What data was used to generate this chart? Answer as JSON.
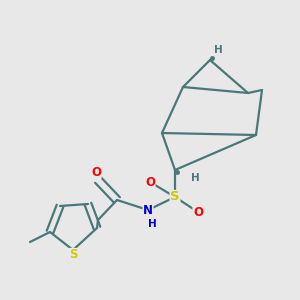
{
  "bg_color": "#e8e8e8",
  "bond_color": "#4a7878",
  "bond_lw": 1.6,
  "atom_colors": {
    "S": "#cccc00",
    "O": "#ff0000",
    "N": "#0000cc",
    "H": "#4a7878"
  },
  "font_size": 8.5
}
